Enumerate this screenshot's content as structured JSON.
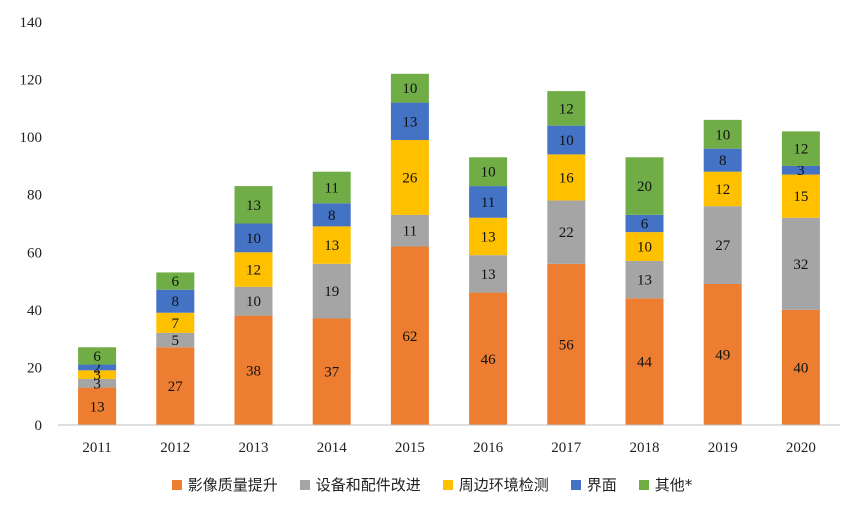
{
  "chart_data": {
    "type": "bar",
    "stacked": true,
    "categories": [
      "2011",
      "2012",
      "2013",
      "2014",
      "2015",
      "2016",
      "2017",
      "2018",
      "2019",
      "2020"
    ],
    "series": [
      {
        "name": "影像质量提升",
        "color": "#ED7D31",
        "values": [
          13,
          27,
          38,
          37,
          62,
          46,
          56,
          44,
          49,
          40
        ]
      },
      {
        "name": "设备和配件改进",
        "color": "#A5A5A5",
        "values": [
          3,
          5,
          10,
          19,
          11,
          13,
          22,
          13,
          27,
          32
        ]
      },
      {
        "name": "周边环境检测",
        "color": "#FFC000",
        "values": [
          3,
          7,
          12,
          13,
          26,
          13,
          16,
          10,
          12,
          15
        ]
      },
      {
        "name": "界面",
        "color": "#4472C4",
        "values": [
          2,
          8,
          10,
          8,
          13,
          11,
          10,
          6,
          8,
          3
        ]
      },
      {
        "name": "其他*",
        "color": "#70AD47",
        "values": [
          6,
          6,
          13,
          11,
          10,
          10,
          12,
          20,
          10,
          12
        ]
      }
    ],
    "ylim": [
      0,
      140
    ],
    "yticks": [
      "0",
      "20",
      "40",
      "60",
      "80",
      "100",
      "120",
      "140"
    ],
    "legend_position": "bottom",
    "grid": false
  }
}
